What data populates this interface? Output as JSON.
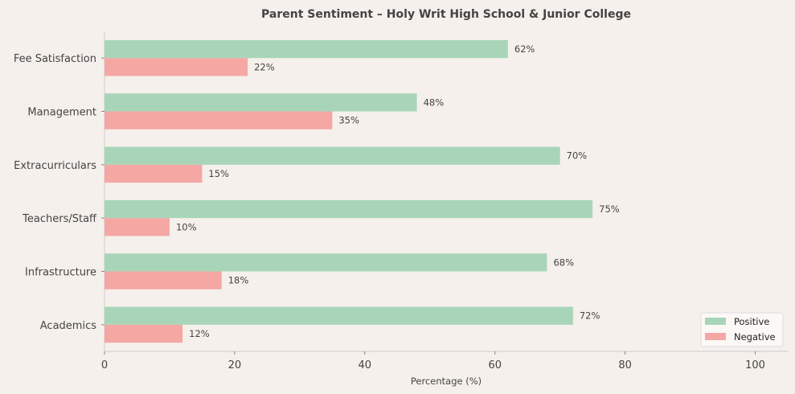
{
  "chart_data": {
    "type": "bar",
    "orientation": "horizontal",
    "title": "Parent Sentiment – Holy Writ High School & Junior College",
    "xlabel": "Percentage (%)",
    "ylabel": "",
    "xlim": [
      0,
      105
    ],
    "xticks": [
      0,
      20,
      40,
      60,
      80,
      100
    ],
    "categories": [
      "Fee Satisfaction",
      "Management",
      "Extracurriculars",
      "Teachers/Staff",
      "Infrastructure",
      "Academics"
    ],
    "series": [
      {
        "name": "Positive",
        "color": "#a8d5b9",
        "values": [
          62,
          48,
          70,
          75,
          68,
          72
        ]
      },
      {
        "name": "Negative",
        "color": "#f5a7a3",
        "values": [
          22,
          35,
          15,
          10,
          18,
          12
        ]
      }
    ],
    "value_suffix": "%",
    "grid": false,
    "legend_position": "bottom-right"
  }
}
